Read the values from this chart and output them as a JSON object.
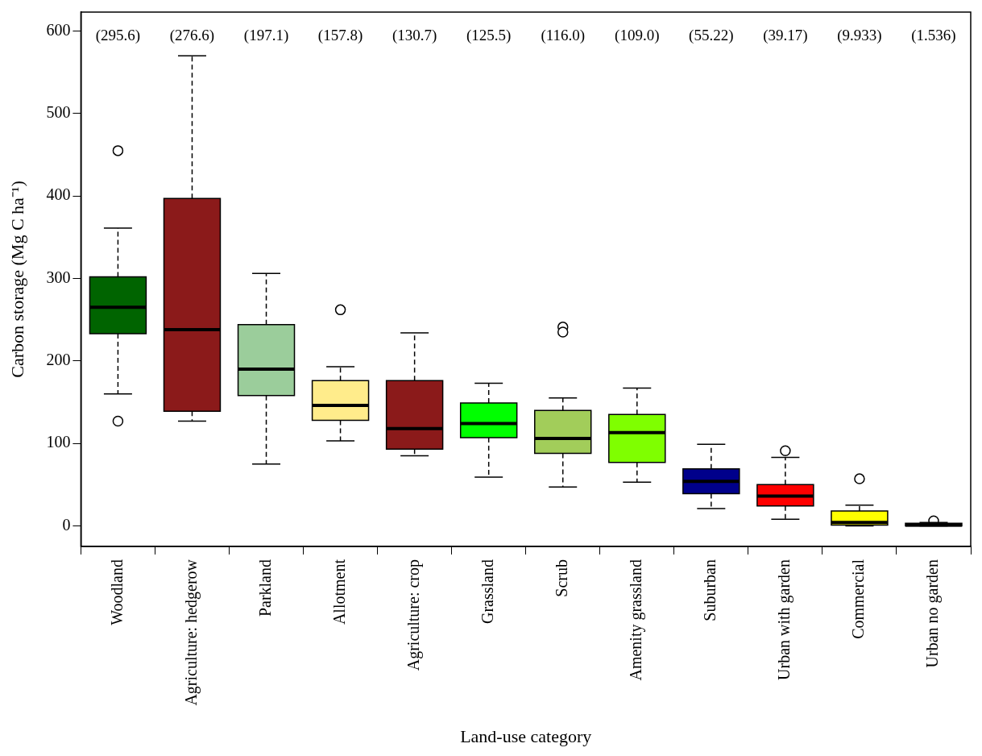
{
  "chart_data": {
    "type": "box",
    "categories": [
      "Woodland",
      "Agriculture: hedgerow",
      "Parkland",
      "Allotment",
      "Agriculture: crop",
      "Grassland",
      "Scrub",
      "Amenity grassland",
      "Suburban",
      "Urban with garden",
      "Commercial",
      "Urban no garden"
    ],
    "colors": [
      "#006400",
      "#8b1a1a",
      "#9bcd9b",
      "#ffec8b",
      "#8b1a1a",
      "#00ff00",
      "#a2cd5a",
      "#7fff00",
      "#00008b",
      "#ff0000",
      "#ffff00",
      "#1a1a1a"
    ],
    "boxes": [
      {
        "low": 160,
        "q1": 233,
        "median": 265,
        "q3": 302,
        "high": 361,
        "outliers": [
          455,
          127
        ]
      },
      {
        "low": 127,
        "q1": 139,
        "median": 238,
        "q3": 397,
        "high": 570
      },
      {
        "low": 75,
        "q1": 158,
        "median": 190,
        "q3": 244,
        "high": 306
      },
      {
        "low": 103,
        "q1": 128,
        "median": 146,
        "q3": 176,
        "high": 193,
        "outliers": [
          262
        ]
      },
      {
        "low": 85,
        "q1": 93,
        "median": 118,
        "q3": 176,
        "high": 234
      },
      {
        "low": 59,
        "q1": 107,
        "median": 124,
        "q3": 149,
        "high": 173
      },
      {
        "low": 47,
        "q1": 88,
        "median": 106,
        "q3": 140,
        "high": 155,
        "outliers": [
          241,
          235
        ]
      },
      {
        "low": 53,
        "q1": 77,
        "median": 113,
        "q3": 135,
        "high": 167
      },
      {
        "low": 21,
        "q1": 39,
        "median": 54,
        "q3": 69,
        "high": 99
      },
      {
        "low": 8,
        "q1": 24,
        "median": 36,
        "q3": 50,
        "high": 83,
        "outliers": [
          91
        ]
      },
      {
        "low": 0,
        "q1": 1,
        "median": 4,
        "q3": 18,
        "high": 25,
        "outliers": [
          57
        ]
      },
      {
        "low": 0,
        "q1": 0,
        "median": 1,
        "q3": 3,
        "high": 4,
        "outliers": [
          6
        ]
      }
    ],
    "annotations": [
      "(295.6)",
      "(276.6)",
      "(197.1)",
      "(157.8)",
      "(130.7)",
      "(125.5)",
      "(116.0)",
      "(109.0)",
      "(55.22)",
      "(39.17)",
      "(9.933)",
      "(1.536)"
    ],
    "xlabel": "Land-use category",
    "ylabel": "Carbon storage (Mg C ha⁻¹)",
    "ylim": [
      -25,
      623
    ],
    "yticks": [
      0,
      100,
      200,
      300,
      400,
      500,
      600
    ],
    "grid": false,
    "legend": false,
    "marker": "circle"
  }
}
